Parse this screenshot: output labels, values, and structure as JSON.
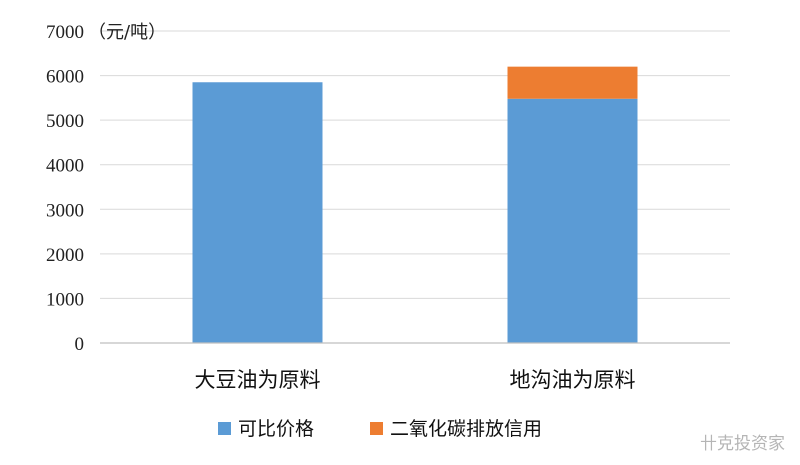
{
  "chart_data": {
    "type": "bar",
    "stacked": true,
    "categories": [
      "大豆油为原料",
      "地沟油为原料"
    ],
    "series": [
      {
        "name": "可比价格",
        "values": [
          5850,
          5480
        ],
        "color": "#5B9BD5"
      },
      {
        "name": "二氧化碳排放信用",
        "values": [
          0,
          720
        ],
        "color": "#ED7D31"
      }
    ],
    "unit": "（元/吨）",
    "ylim": [
      0,
      7000
    ],
    "yticks": [
      0,
      1000,
      2000,
      3000,
      4000,
      5000,
      6000,
      7000
    ],
    "grid": true,
    "legend": "bottom"
  },
  "watermark": "卄克投资家"
}
